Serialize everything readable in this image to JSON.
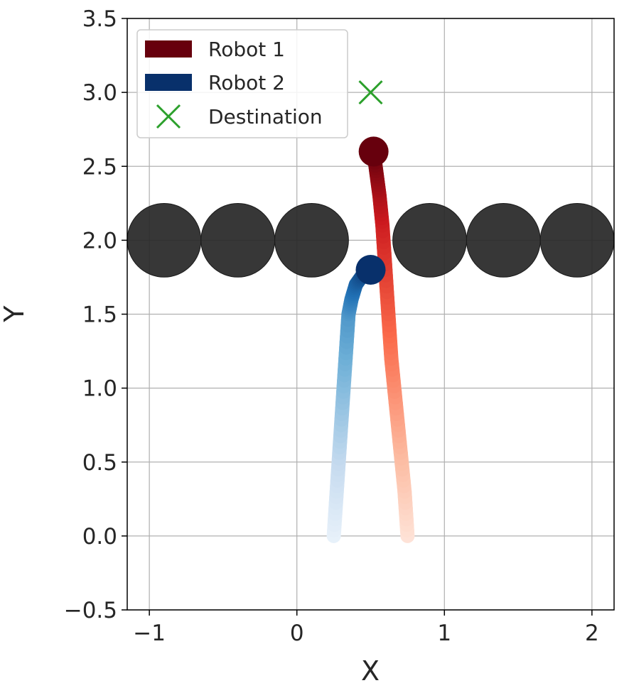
{
  "chart_data": {
    "type": "line",
    "xlabel": "X",
    "ylabel": "Y",
    "xlim": [
      -1.15,
      2.15
    ],
    "ylim": [
      -0.5,
      3.5
    ],
    "xticks": [
      -1,
      0,
      1,
      2
    ],
    "xtick_labels": [
      "−1",
      "0",
      "1",
      "2"
    ],
    "yticks": [
      -0.5,
      0.0,
      0.5,
      1.0,
      1.5,
      2.0,
      2.5,
      3.0,
      3.5
    ],
    "ytick_labels": [
      "−0.5",
      "0.0",
      "0.5",
      "1.0",
      "1.5",
      "2.0",
      "2.5",
      "3.0",
      "3.5"
    ],
    "grid": true,
    "legend_position": "top-left",
    "series": [
      {
        "name": "Robot 1",
        "color": "#67000d",
        "colormap": "Reds",
        "x": [
          0.75,
          0.73,
          0.7,
          0.67,
          0.64,
          0.62,
          0.6,
          0.58,
          0.56,
          0.54,
          0.52
        ],
        "y": [
          0.0,
          0.3,
          0.6,
          0.9,
          1.2,
          1.5,
          1.8,
          2.1,
          2.3,
          2.45,
          2.6
        ]
      },
      {
        "name": "Robot 2",
        "color": "#08306b",
        "colormap": "Blues",
        "x": [
          0.25,
          0.27,
          0.29,
          0.31,
          0.33,
          0.35,
          0.37,
          0.4,
          0.45,
          0.5
        ],
        "y": [
          0.0,
          0.3,
          0.6,
          0.9,
          1.2,
          1.5,
          1.6,
          1.7,
          1.77,
          1.8
        ]
      }
    ],
    "destination": {
      "name": "Destination",
      "x": 0.5,
      "y": 3.0,
      "color": "#2ca02c",
      "marker": "x"
    },
    "obstacles": {
      "color": "#262626",
      "radius": 0.25,
      "centers": [
        [
          -0.9,
          2.0
        ],
        [
          -0.4,
          2.0
        ],
        [
          0.1,
          2.0
        ],
        [
          0.9,
          2.0
        ],
        [
          1.4,
          2.0
        ],
        [
          1.9,
          2.0
        ]
      ]
    }
  }
}
